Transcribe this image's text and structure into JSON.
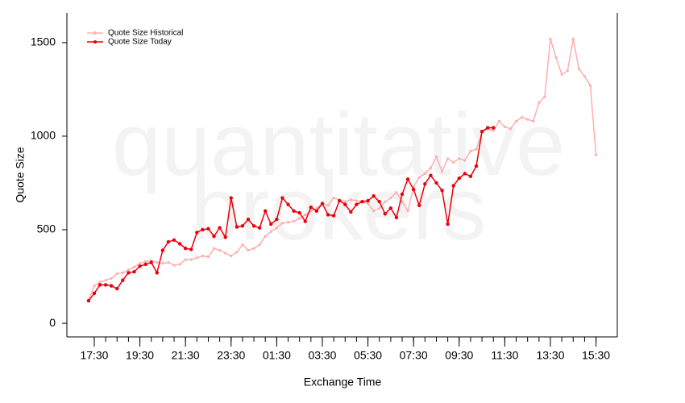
{
  "chart_data": {
    "type": "line",
    "xlabel": "Exchange Time",
    "ylabel": "Quote Size",
    "watermark_lines": [
      "quantitative",
      "brokers"
    ],
    "xlim": [
      978,
      2426
    ],
    "xticks": [
      {
        "value": 1050,
        "label": "17:30"
      },
      {
        "value": 1170,
        "label": "19:30"
      },
      {
        "value": 1290,
        "label": "21:30"
      },
      {
        "value": 1410,
        "label": "23:30"
      },
      {
        "value": 1530,
        "label": "01:30"
      },
      {
        "value": 1650,
        "label": "03:30"
      },
      {
        "value": 1770,
        "label": "05:30"
      },
      {
        "value": 1890,
        "label": "07:30"
      },
      {
        "value": 2010,
        "label": "09:30"
      },
      {
        "value": 2130,
        "label": "11:30"
      },
      {
        "value": 2250,
        "label": "13:30"
      },
      {
        "value": 2370,
        "label": "15:30"
      }
    ],
    "xminorticks": [
      1050,
      1080,
      1110,
      1140,
      1170,
      1200,
      1230,
      1260,
      1290,
      1320,
      1350,
      1380,
      1410,
      1440,
      1470,
      1500,
      1530,
      1560,
      1590,
      1620,
      1650,
      1680,
      1710,
      1740,
      1770,
      1800,
      1830,
      1860,
      1890,
      1920,
      1950,
      1980,
      2010,
      2040,
      2070,
      2100,
      2130,
      2160,
      2190,
      2220,
      2250,
      2280,
      2310,
      2340,
      2370
    ],
    "ylim": [
      -73,
      1659
    ],
    "yticks": [
      0,
      500,
      1000,
      1500
    ],
    "legend": "top-left",
    "series": [
      {
        "name": "Quote Size Historical",
        "color": "#ffaeb0",
        "x": [
          1035,
          1050,
          1065,
          1080,
          1095,
          1110,
          1125,
          1140,
          1155,
          1170,
          1185,
          1200,
          1215,
          1230,
          1245,
          1260,
          1275,
          1290,
          1305,
          1320,
          1335,
          1350,
          1365,
          1380,
          1395,
          1410,
          1425,
          1440,
          1455,
          1470,
          1485,
          1500,
          1515,
          1530,
          1545,
          1560,
          1575,
          1590,
          1605,
          1620,
          1635,
          1650,
          1665,
          1680,
          1695,
          1710,
          1725,
          1740,
          1755,
          1770,
          1785,
          1800,
          1815,
          1830,
          1845,
          1860,
          1875,
          1890,
          1905,
          1920,
          1935,
          1950,
          1965,
          1980,
          1995,
          2010,
          2025,
          2040,
          2055,
          2070,
          2085,
          2100,
          2115,
          2130,
          2145,
          2160,
          2175,
          2190,
          2205,
          2220,
          2235,
          2250,
          2265,
          2280,
          2295,
          2310,
          2325,
          2340,
          2355,
          2370
        ],
        "values": [
          125,
          200,
          220,
          230,
          240,
          265,
          270,
          285,
          300,
          320,
          330,
          335,
          325,
          320,
          325,
          310,
          315,
          340,
          340,
          350,
          360,
          355,
          400,
          390,
          375,
          360,
          380,
          420,
          390,
          400,
          420,
          465,
          490,
          510,
          535,
          540,
          545,
          560,
          580,
          600,
          615,
          640,
          630,
          670,
          660,
          650,
          660,
          655,
          650,
          640,
          600,
          615,
          650,
          670,
          700,
          650,
          600,
          730,
          780,
          800,
          830,
          890,
          810,
          880,
          860,
          880,
          870,
          920,
          930,
          1020,
          1040,
          1030,
          1080,
          1050,
          1040,
          1080,
          1100,
          1090,
          1080,
          1180,
          1210,
          1520,
          1420,
          1330,
          1350,
          1520,
          1360,
          1320,
          1270,
          900
        ]
      },
      {
        "name": "Quote Size Today",
        "color": "#e8000b",
        "x": [
          1035,
          1050,
          1065,
          1080,
          1095,
          1110,
          1125,
          1140,
          1155,
          1170,
          1185,
          1200,
          1215,
          1230,
          1245,
          1260,
          1275,
          1290,
          1305,
          1320,
          1335,
          1350,
          1365,
          1380,
          1395,
          1410,
          1425,
          1440,
          1455,
          1470,
          1485,
          1500,
          1515,
          1530,
          1545,
          1560,
          1575,
          1590,
          1605,
          1620,
          1635,
          1650,
          1665,
          1680,
          1695,
          1710,
          1725,
          1740,
          1755,
          1770,
          1785,
          1800,
          1815,
          1830,
          1845,
          1860,
          1875,
          1890,
          1905,
          1920,
          1935,
          1950,
          1965,
          1980,
          1995,
          2010,
          2025,
          2040,
          2055,
          2070,
          2085,
          2100
        ],
        "values": [
          120,
          160,
          205,
          205,
          200,
          185,
          230,
          270,
          275,
          305,
          315,
          325,
          270,
          390,
          435,
          445,
          425,
          400,
          395,
          485,
          500,
          505,
          465,
          510,
          460,
          670,
          515,
          520,
          555,
          520,
          510,
          600,
          530,
          555,
          670,
          635,
          600,
          590,
          545,
          620,
          600,
          640,
          580,
          575,
          655,
          635,
          595,
          635,
          650,
          655,
          680,
          650,
          585,
          615,
          565,
          690,
          770,
          715,
          630,
          745,
          790,
          750,
          710,
          530,
          735,
          775,
          800,
          785,
          840,
          1025,
          1045,
          1045
        ]
      }
    ]
  }
}
